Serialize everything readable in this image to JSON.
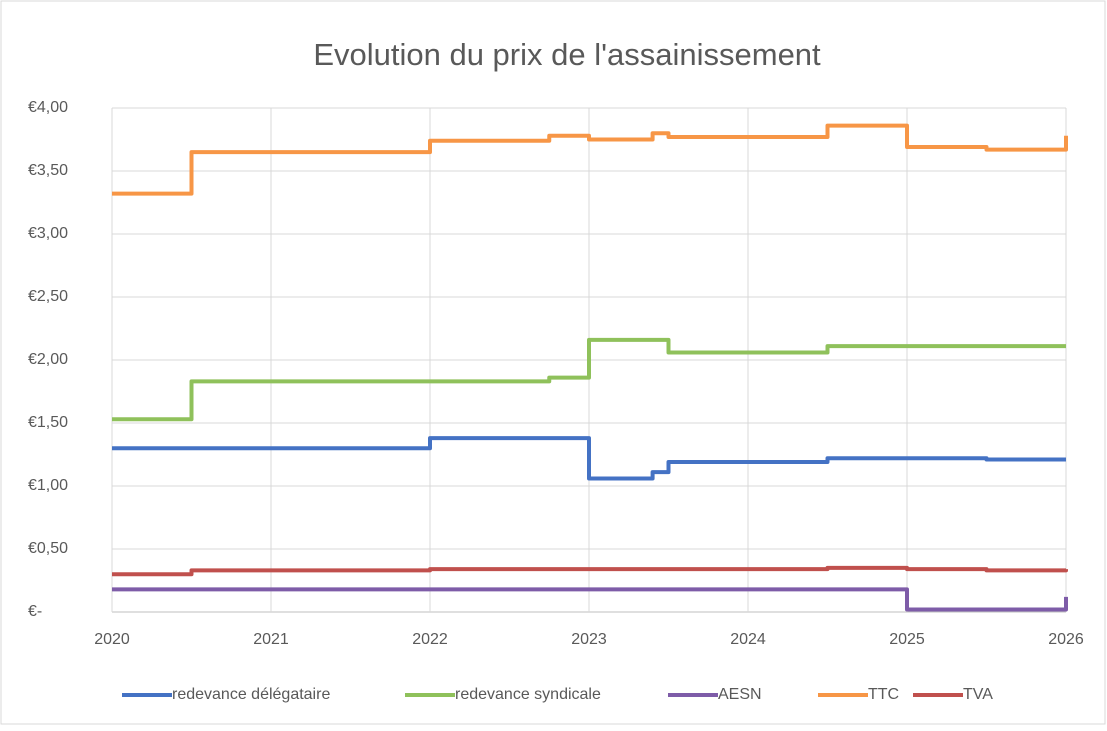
{
  "chart_data": {
    "type": "line",
    "step": "post",
    "title": "Evolution du prix de l'assainissement",
    "xlim": [
      2020,
      2026
    ],
    "xticks": [
      2020,
      2021,
      2022,
      2023,
      2024,
      2025,
      2026
    ],
    "ylim": [
      0,
      4
    ],
    "yticks": [
      {
        "value": 0,
        "label": "€-"
      },
      {
        "value": 0.5,
        "label": "€0,50"
      },
      {
        "value": 1,
        "label": "€1,00"
      },
      {
        "value": 1.5,
        "label": "€1,50"
      },
      {
        "value": 2,
        "label": "€2,00"
      },
      {
        "value": 2.5,
        "label": "€2,50"
      },
      {
        "value": 3,
        "label": "€3,00"
      },
      {
        "value": 3.5,
        "label": "€3,50"
      },
      {
        "value": 4,
        "label": "€4,00"
      }
    ],
    "grid": true,
    "legend": "bottom",
    "series": [
      {
        "name": "redevance délégataire",
        "color": "#4472c4",
        "x": [
          2020,
          2022,
          2023,
          2023.4,
          2023.5,
          2024.5,
          2025.5,
          2026
        ],
        "values": [
          1.3,
          1.38,
          1.06,
          1.11,
          1.19,
          1.22,
          1.21,
          1.21
        ]
      },
      {
        "name": "redevance syndicale",
        "color": "#8fc15b",
        "x": [
          2020,
          2020.5,
          2022.75,
          2023,
          2023.5,
          2024.5,
          2026
        ],
        "values": [
          1.53,
          1.83,
          1.86,
          2.16,
          2.06,
          2.11,
          2.11
        ]
      },
      {
        "name": "AESN",
        "color": "#7e5ca8",
        "x": [
          2020,
          2025,
          2026
        ],
        "values": [
          0.18,
          0.02,
          0.12
        ]
      },
      {
        "name": "TTC",
        "color": "#f79646",
        "x": [
          2020,
          2020.5,
          2022,
          2022.75,
          2023,
          2023.4,
          2023.5,
          2024.5,
          2025,
          2025.5,
          2026
        ],
        "values": [
          3.32,
          3.65,
          3.74,
          3.78,
          3.75,
          3.8,
          3.77,
          3.86,
          3.69,
          3.67,
          3.78
        ]
      },
      {
        "name": "TVA",
        "color": "#c0504d",
        "x": [
          2020,
          2020.5,
          2022,
          2024.5,
          2025,
          2025.5,
          2026
        ],
        "values": [
          0.3,
          0.33,
          0.34,
          0.35,
          0.34,
          0.33,
          0.34
        ]
      }
    ]
  }
}
